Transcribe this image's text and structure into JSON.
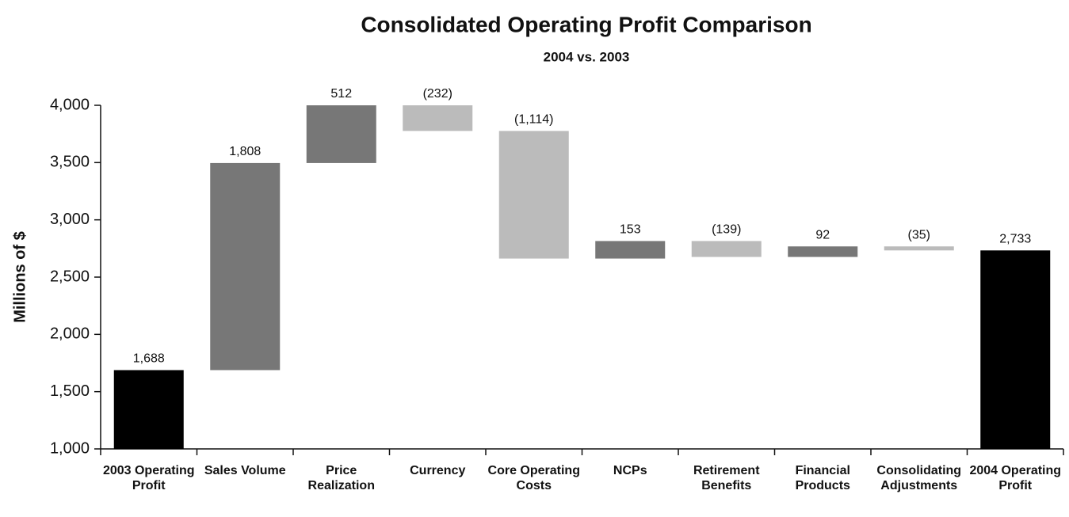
{
  "chart_data": {
    "type": "waterfall",
    "title": "Consolidated Operating Profit Comparison",
    "subtitle": "2004 vs. 2003",
    "y_label": "Millions of $",
    "categories": [
      "2003 Operating Profit",
      "Sales Volume",
      "Price Realization",
      "Currency",
      "Core Operating Costs",
      "NCPs",
      "Retirement Benefits",
      "Financial Products",
      "Consolidating Adjustments",
      "2004 Operating Profit"
    ],
    "values": [
      1688,
      1808,
      512,
      -232,
      -1114,
      153,
      -139,
      92,
      -35,
      2733
    ],
    "value_labels": [
      "1,688",
      "1,808",
      "512",
      "(232)",
      "(1,114)",
      "153",
      "(139)",
      "92",
      "(35)",
      "2,733"
    ],
    "is_total": [
      true,
      false,
      false,
      false,
      false,
      false,
      false,
      false,
      false,
      true
    ],
    "colors": {
      "total": "#000000",
      "increase": "#777777",
      "decrease": "#bbbbbb"
    },
    "ylim": [
      1000,
      4000
    ],
    "yticks": [
      {
        "value": 1000,
        "label": "1,000"
      },
      {
        "value": 1500,
        "label": "1,500"
      },
      {
        "value": 2000,
        "label": "2,000"
      },
      {
        "value": 2500,
        "label": "2,500"
      },
      {
        "value": 3000,
        "label": "3,000"
      },
      {
        "value": 3500,
        "label": "3,500"
      },
      {
        "value": 4000,
        "label": "4,000"
      }
    ]
  }
}
